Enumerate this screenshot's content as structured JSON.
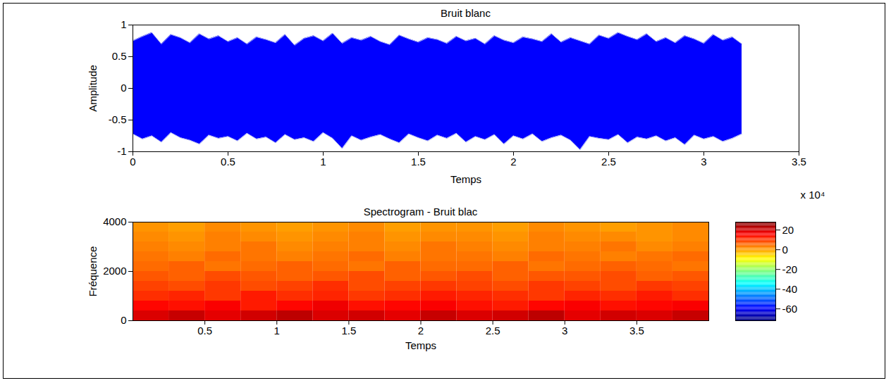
{
  "chart_data": [
    {
      "type": "area",
      "title": "Bruit blanc",
      "x_label": "Temps",
      "y_label": "Amplitude",
      "x_multiplier_label": "x 10⁴",
      "color": "#0000ff",
      "x": [
        0,
        0.05,
        0.1,
        0.15,
        0.2,
        0.25,
        0.3,
        0.35,
        0.4,
        0.45,
        0.5,
        0.55,
        0.6,
        0.65,
        0.7,
        0.75,
        0.8,
        0.85,
        0.9,
        0.95,
        1,
        1.05,
        1.1,
        1.15,
        1.2,
        1.25,
        1.3,
        1.35,
        1.4,
        1.45,
        1.5,
        1.55,
        1.6,
        1.65,
        1.7,
        1.75,
        1.8,
        1.85,
        1.9,
        1.95,
        2,
        2.05,
        2.1,
        2.15,
        2.2,
        2.25,
        2.3,
        2.35,
        2.4,
        2.45,
        2.5,
        2.55,
        2.6,
        2.65,
        2.7,
        2.75,
        2.8,
        2.85,
        2.9,
        2.95,
        3,
        3.05,
        3.1,
        3.15,
        3.2
      ],
      "upper": [
        0.75,
        0.82,
        0.88,
        0.7,
        0.85,
        0.8,
        0.72,
        0.86,
        0.78,
        0.83,
        0.74,
        0.8,
        0.7,
        0.81,
        0.77,
        0.72,
        0.85,
        0.68,
        0.79,
        0.83,
        0.75,
        0.87,
        0.71,
        0.8,
        0.76,
        0.82,
        0.74,
        0.69,
        0.84,
        0.78,
        0.73,
        0.8,
        0.77,
        0.71,
        0.82,
        0.75,
        0.79,
        0.7,
        0.83,
        0.76,
        0.72,
        0.81,
        0.78,
        0.74,
        0.86,
        0.73,
        0.8,
        0.75,
        0.7,
        0.84,
        0.79,
        0.88,
        0.82,
        0.77,
        0.86,
        0.74,
        0.8,
        0.72,
        0.83,
        0.78,
        0.71,
        0.85,
        0.76,
        0.81,
        0.7
      ],
      "lower": [
        -0.72,
        -0.8,
        -0.75,
        -0.85,
        -0.7,
        -0.78,
        -0.82,
        -0.88,
        -0.74,
        -0.79,
        -0.76,
        -0.83,
        -0.71,
        -0.8,
        -0.77,
        -0.86,
        -0.73,
        -0.81,
        -0.78,
        -0.84,
        -0.7,
        -0.79,
        -0.95,
        -0.75,
        -0.82,
        -0.77,
        -0.73,
        -0.8,
        -0.86,
        -0.72,
        -0.78,
        -0.83,
        -0.74,
        -0.79,
        -0.71,
        -0.85,
        -0.76,
        -0.81,
        -0.73,
        -0.88,
        -0.75,
        -0.8,
        -0.72,
        -0.84,
        -0.78,
        -0.74,
        -0.82,
        -0.97,
        -0.76,
        -0.79,
        -0.81,
        -0.73,
        -0.86,
        -0.77,
        -0.8,
        -0.75,
        -0.83,
        -0.78,
        -0.89,
        -0.74,
        -0.8,
        -0.76,
        -0.84,
        -0.79,
        -0.72
      ],
      "xlim": [
        0,
        3.5
      ],
      "xticks": [
        0,
        0.5,
        1,
        1.5,
        2,
        2.5,
        3,
        3.5
      ],
      "ylim": [
        -1,
        1
      ],
      "yticks": [
        -1,
        -0.5,
        0,
        0.5,
        1
      ]
    },
    {
      "type": "heatmap",
      "title": "Spectrogram - Bruit blac",
      "x_label": "Temps",
      "y_label": "Fréquence",
      "color": "jet",
      "x_edges": [
        0,
        0.25,
        0.5,
        0.75,
        1,
        1.25,
        1.5,
        1.75,
        2,
        2.25,
        2.5,
        2.75,
        3,
        3.25,
        3.5,
        3.75,
        4
      ],
      "y_edges": [
        0,
        400,
        800,
        1200,
        1600,
        2000,
        2400,
        2800,
        3200,
        3600,
        4000
      ],
      "cells": [
        [
          19,
          21,
          18,
          20,
          22,
          19,
          20,
          18,
          21,
          19,
          20,
          22,
          18,
          20,
          19,
          21
        ],
        [
          15,
          14,
          16,
          13,
          15,
          17,
          14,
          15,
          16,
          14,
          13,
          15,
          16,
          14,
          15,
          16
        ],
        [
          11,
          12,
          10,
          13,
          11,
          12,
          10,
          11,
          13,
          12,
          11,
          10,
          12,
          11,
          13,
          11
        ],
        [
          9,
          8,
          10,
          8,
          9,
          11,
          8,
          9,
          10,
          9,
          8,
          10,
          9,
          8,
          10,
          9
        ],
        [
          7,
          6,
          8,
          7,
          6,
          7,
          8,
          6,
          7,
          8,
          6,
          7,
          7,
          8,
          6,
          7
        ],
        [
          5,
          6,
          4,
          5,
          6,
          5,
          4,
          6,
          5,
          5,
          6,
          4,
          5,
          6,
          5,
          4
        ],
        [
          4,
          3,
          5,
          4,
          3,
          4,
          5,
          3,
          4,
          4,
          3,
          5,
          4,
          3,
          4,
          5
        ],
        [
          3,
          2,
          3,
          4,
          2,
          3,
          3,
          2,
          4,
          3,
          2,
          3,
          3,
          4,
          2,
          3
        ],
        [
          2,
          1,
          3,
          2,
          1,
          2,
          3,
          1,
          2,
          2,
          1,
          3,
          2,
          2,
          1,
          2
        ],
        [
          1,
          0,
          2,
          1,
          0,
          1,
          2,
          0,
          1,
          1,
          0,
          2,
          1,
          0,
          1,
          2
        ]
      ],
      "colorbar": {
        "range": [
          -72,
          28
        ],
        "ticks": [
          -60,
          -40,
          -20,
          0,
          20
        ]
      },
      "xlim": [
        0,
        4
      ],
      "xticks": [
        0.5,
        1,
        1.5,
        2,
        2.5,
        3,
        3.5
      ],
      "ylim": [
        0,
        4000
      ],
      "yticks": [
        0,
        2000,
        4000
      ]
    }
  ]
}
